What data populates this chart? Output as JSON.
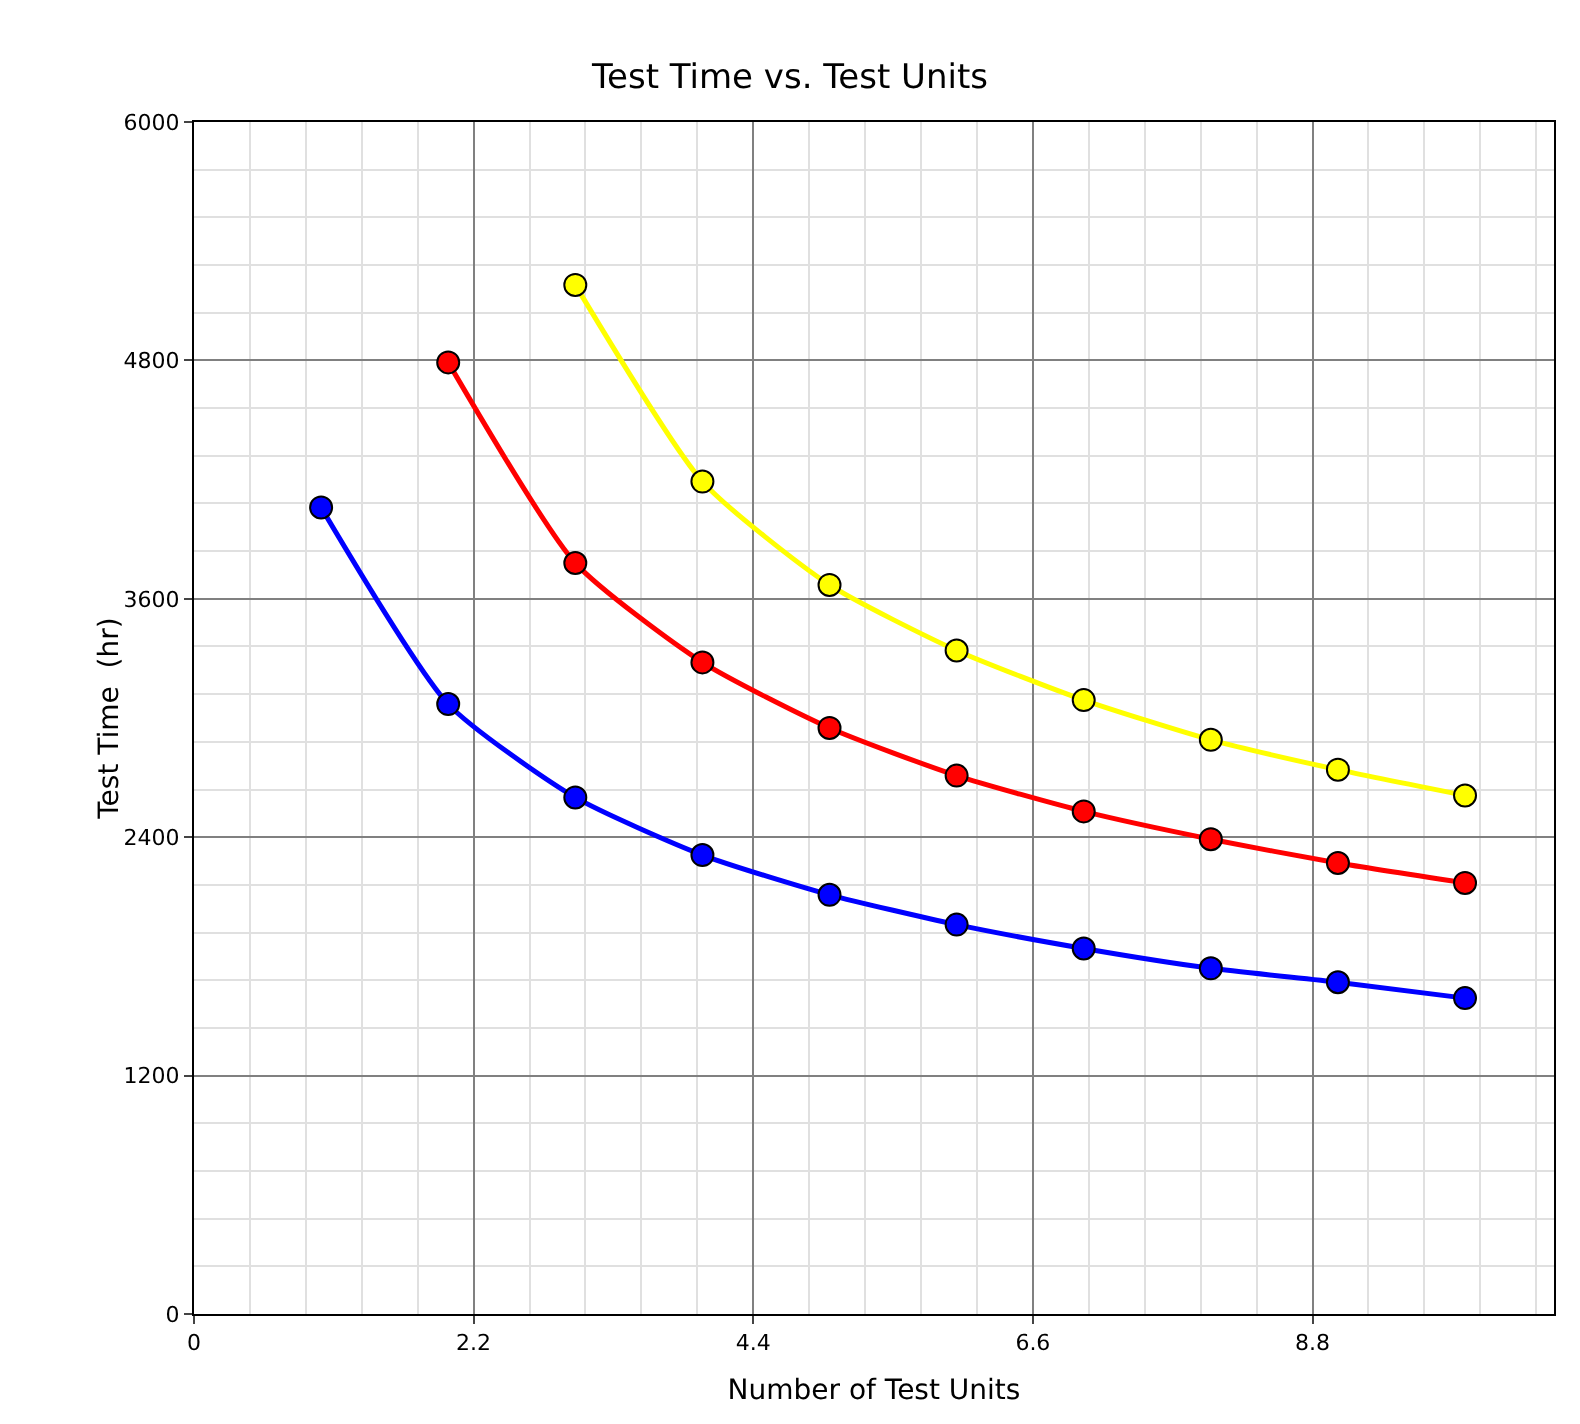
{
  "chart_data": {
    "type": "line",
    "title": "Test Time vs. Test Units",
    "xlabel": "Number of Test Units",
    "ylabel": "Test Time  (hr)",
    "xlim": [
      0,
      10.7
    ],
    "xticks": [
      0,
      2.2,
      4.4,
      6.6,
      8.8
    ],
    "ylim": [
      0,
      6000
    ],
    "yticks": [
      0,
      1200,
      2400,
      3600,
      4800,
      6000
    ],
    "grid": true,
    "marker": "circle",
    "line_style": "solid",
    "series": [
      {
        "color": "#0000ff",
        "x": [
          1,
          2,
          3,
          4,
          5,
          6,
          7,
          8,
          9,
          10
        ],
        "values": [
          4060,
          3070,
          2600,
          2310,
          2110,
          1960,
          1840,
          1740,
          1670,
          1590
        ]
      },
      {
        "color": "#ff0000",
        "x": [
          2,
          3,
          4,
          5,
          6,
          7,
          8,
          9,
          10
        ],
        "values": [
          4790,
          3780,
          3280,
          2950,
          2710,
          2530,
          2390,
          2270,
          2170
        ]
      },
      {
        "color": "#ffff00",
        "x": [
          3,
          4,
          5,
          6,
          7,
          8,
          9,
          10
        ],
        "values": [
          5180,
          4190,
          3670,
          3340,
          3090,
          2890,
          2740,
          2610
        ]
      }
    ]
  }
}
